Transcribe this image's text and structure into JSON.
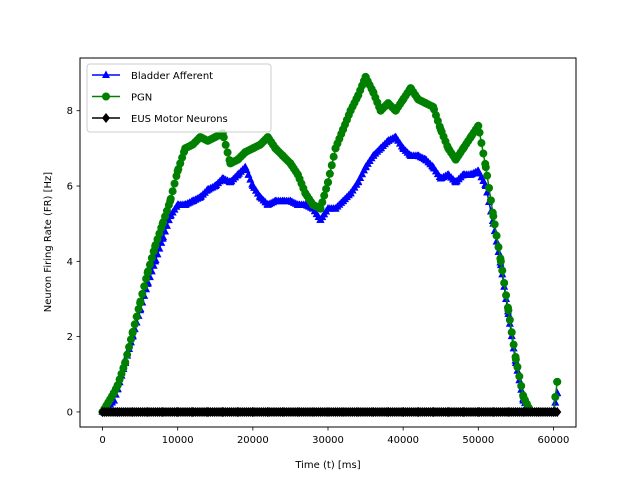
{
  "chart_data": {
    "type": "line",
    "xlabel": "Time (t) [ms]",
    "ylabel": "Neuron Firing Rate (FR) [Hz]",
    "xlim": [
      -3000,
      63000
    ],
    "ylim": [
      -0.4,
      9.4
    ],
    "xticks": [
      0,
      10000,
      20000,
      30000,
      40000,
      50000,
      60000
    ],
    "yticks": [
      0,
      2,
      4,
      6,
      8
    ],
    "grid": false,
    "legend_position": "upper-left",
    "series": [
      {
        "name": "Bladder Afferent",
        "color": "#0000ff",
        "marker": "triangle",
        "x": [
          0,
          1500,
          2000,
          3000,
          4000,
          5000,
          6000,
          7000,
          8000,
          9000,
          10000,
          11000,
          12000,
          13000,
          14000,
          15000,
          16000,
          17000,
          18000,
          19000,
          20000,
          21000,
          22000,
          23000,
          24000,
          25000,
          26000,
          27000,
          28000,
          29000,
          30000,
          31000,
          32000,
          33000,
          34000,
          35000,
          36000,
          37000,
          38000,
          39000,
          40000,
          41000,
          42000,
          43000,
          44000,
          45000,
          46000,
          47000,
          48000,
          49000,
          50000,
          51000,
          52000,
          53000,
          54000,
          55000,
          56000,
          57000,
          60000,
          60500
        ],
        "y": [
          0,
          0.3,
          0.6,
          1.3,
          2.0,
          2.7,
          3.4,
          4.0,
          4.6,
          5.2,
          5.5,
          5.5,
          5.6,
          5.7,
          5.9,
          6.0,
          6.2,
          6.1,
          6.3,
          6.5,
          6.0,
          5.7,
          5.5,
          5.6,
          5.6,
          5.6,
          5.5,
          5.5,
          5.4,
          5.1,
          5.4,
          5.4,
          5.6,
          5.8,
          6.1,
          6.5,
          6.8,
          7.0,
          7.2,
          7.3,
          7.0,
          6.8,
          6.8,
          6.7,
          6.5,
          6.2,
          6.3,
          6.1,
          6.3,
          6.3,
          6.4,
          6.0,
          5.0,
          3.9,
          2.6,
          1.3,
          0.3,
          0,
          0,
          0.5
        ]
      },
      {
        "name": "PGN",
        "color": "#008000",
        "marker": "circle",
        "x": [
          0,
          1500,
          2000,
          3000,
          4000,
          5000,
          6000,
          7000,
          8000,
          9000,
          10000,
          11000,
          12000,
          13000,
          14000,
          15000,
          16000,
          17000,
          18000,
          19000,
          20000,
          21000,
          22000,
          23000,
          24000,
          25000,
          26000,
          27000,
          28000,
          29000,
          30000,
          31000,
          32000,
          33000,
          34000,
          35000,
          36000,
          37000,
          38000,
          39000,
          40000,
          41000,
          42000,
          43000,
          44000,
          45000,
          46000,
          47000,
          48000,
          49000,
          50000,
          51000,
          52000,
          53000,
          54000,
          55000,
          56000,
          57000,
          60000,
          60500
        ],
        "y": [
          0,
          0.5,
          0.7,
          1.3,
          2.1,
          2.9,
          3.7,
          4.4,
          5.0,
          5.6,
          6.4,
          7.0,
          7.1,
          7.3,
          7.2,
          7.3,
          7.4,
          6.6,
          6.7,
          6.9,
          7.0,
          7.1,
          7.3,
          7.0,
          6.8,
          6.6,
          6.3,
          5.8,
          5.5,
          5.4,
          6.1,
          7.0,
          7.5,
          8.0,
          8.4,
          8.9,
          8.5,
          8.0,
          8.2,
          8.0,
          8.3,
          8.6,
          8.3,
          8.2,
          8.1,
          7.5,
          7.0,
          6.7,
          7.0,
          7.3,
          7.6,
          6.5,
          5.2,
          4.0,
          2.7,
          1.4,
          0.4,
          0,
          0,
          0.8
        ]
      },
      {
        "name": "EUS Motor Neurons",
        "color": "#000000",
        "marker": "diamond",
        "x": [
          0,
          2000,
          4000,
          6000,
          8000,
          10000,
          12000,
          14000,
          16000,
          18000,
          20000,
          22000,
          24000,
          26000,
          28000,
          30000,
          32000,
          34000,
          36000,
          38000,
          40000,
          42000,
          44000,
          46000,
          48000,
          50000,
          52000,
          54000,
          56000,
          58000,
          60000,
          60500
        ],
        "y": [
          0,
          0,
          0,
          0,
          0,
          0,
          0,
          0,
          0,
          0,
          0,
          0,
          0,
          0,
          0,
          0,
          0,
          0,
          0,
          0,
          0,
          0,
          0,
          0,
          0,
          0,
          0,
          0,
          0,
          0,
          0,
          0
        ]
      }
    ]
  }
}
